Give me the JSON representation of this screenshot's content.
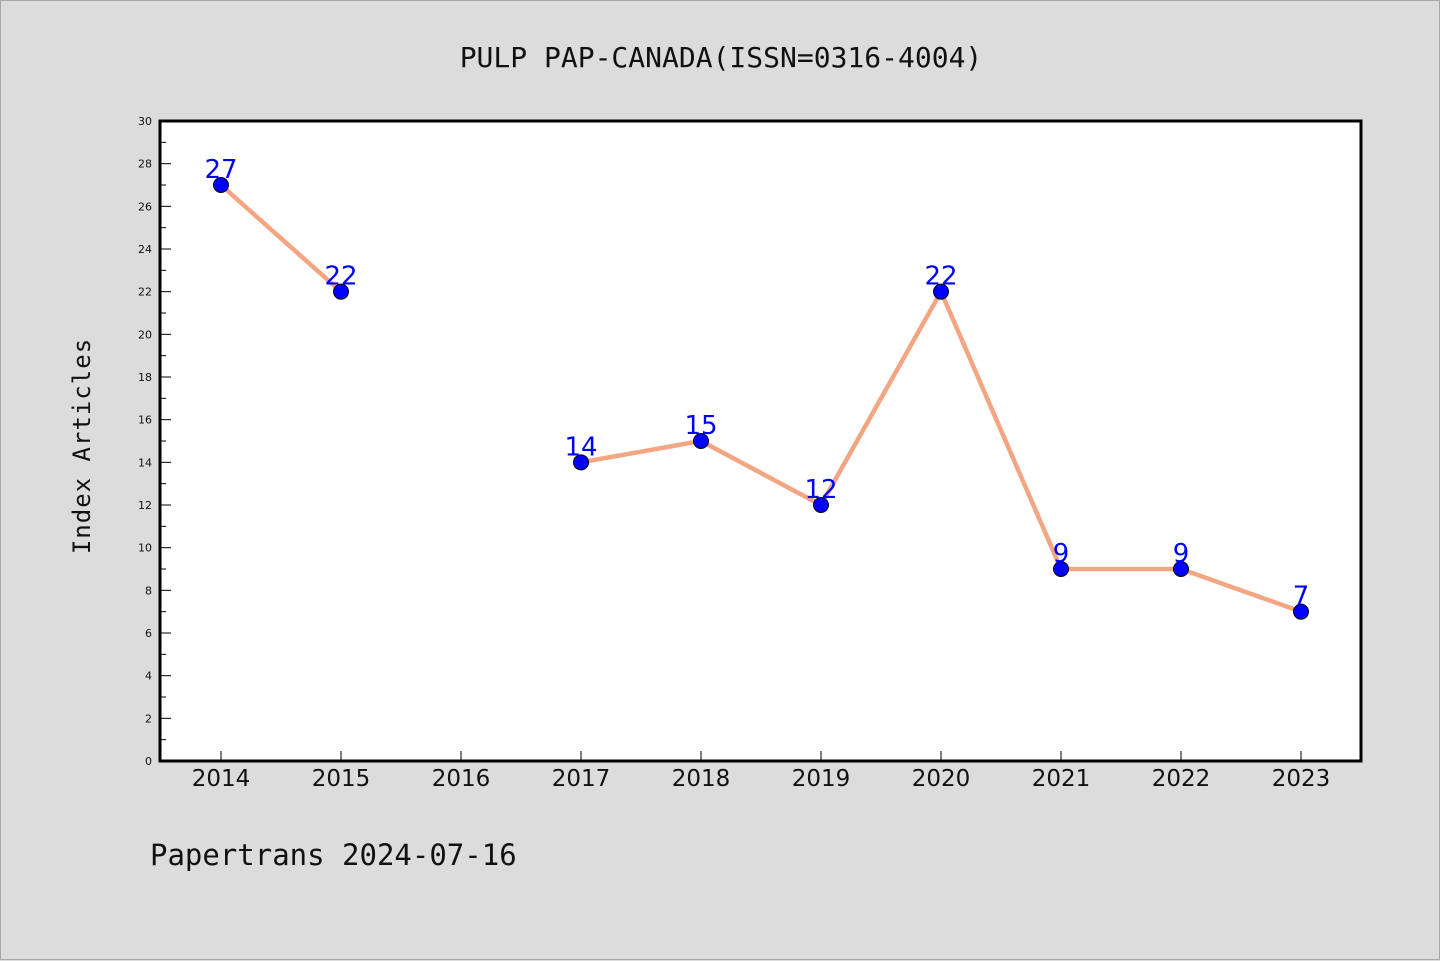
{
  "chart_data": {
    "type": "line",
    "title": "PULP PAP-CANADA(ISSN=0316-4004)",
    "xlabel": "",
    "ylabel": "Index Articles",
    "categories": [
      "2014",
      "2015",
      "2016",
      "2017",
      "2018",
      "2019",
      "2020",
      "2021",
      "2022",
      "2023"
    ],
    "series": [
      {
        "values": [
          27,
          22,
          null,
          14,
          15,
          12,
          22,
          9,
          9,
          7
        ]
      }
    ],
    "ylim": [
      0,
      30
    ],
    "yticks": [
      0,
      2,
      4,
      6,
      8,
      10,
      12,
      14,
      16,
      18,
      20,
      22,
      24,
      26,
      28,
      30
    ],
    "grid": false,
    "line_color": "#f4a582",
    "marker_color": "#0000ff",
    "label_color": "#0000ff"
  },
  "footer": "Papertrans 2024-07-16"
}
